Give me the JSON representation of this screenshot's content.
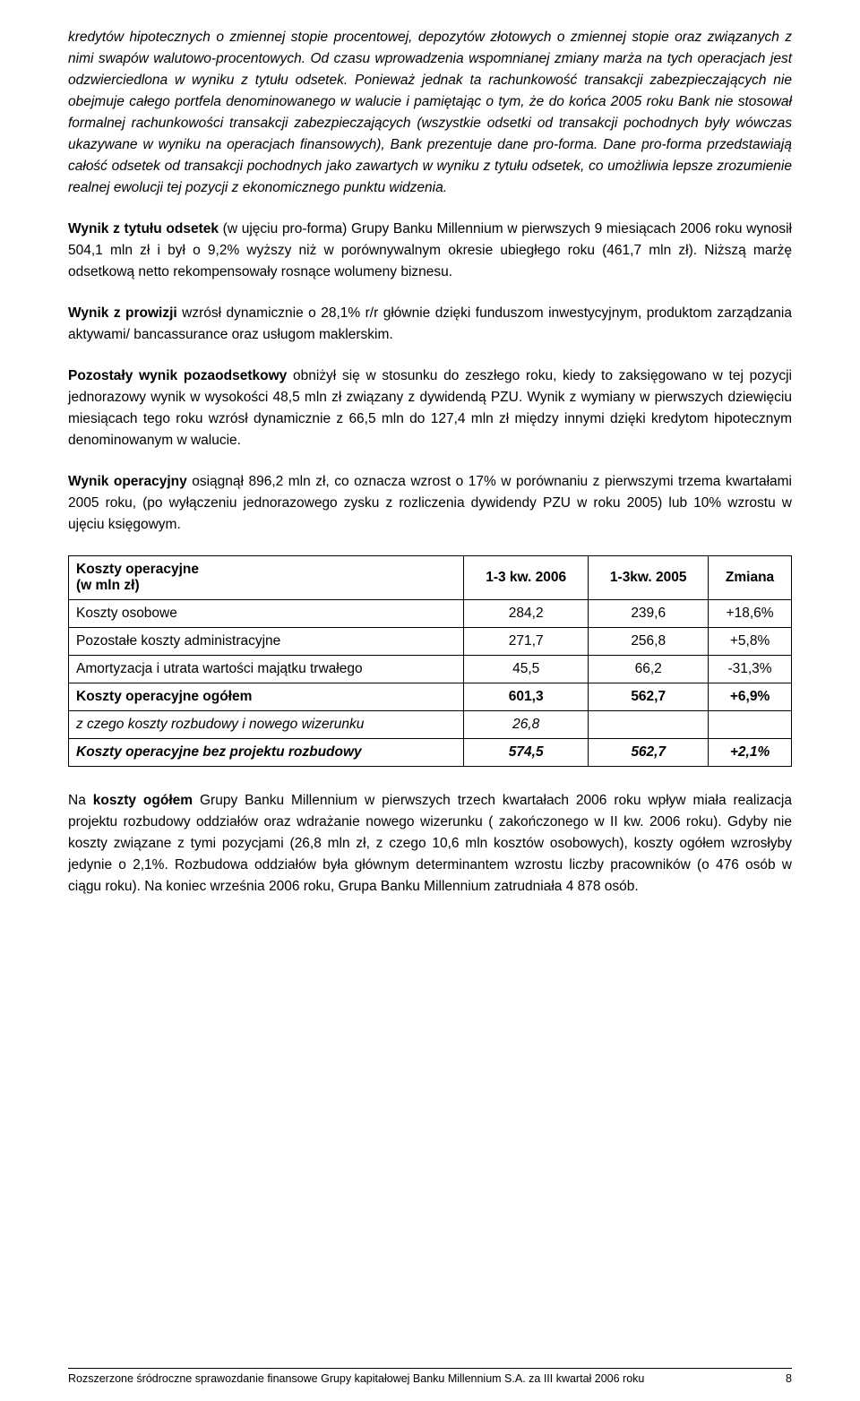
{
  "paragraphs": {
    "p1_full": "kredytów hipotecznych o zmiennej stopie procentowej, depozytów złotowych o zmiennej stopie oraz związanych z nimi swapów walutowo-procentowych. Od czasu wprowadzenia wspomnianej zmiany marża na tych operacjach jest odzwierciedlona w wyniku z tytułu odsetek. Ponieważ jednak ta rachunkowość transakcji zabezpieczających nie obejmuje całego portfela denominowanego w walucie i pamiętając o tym, że do końca 2005 roku Bank nie stosował formalnej rachunkowości transakcji zabezpieczających (wszystkie odsetki od transakcji pochodnych były wówczas ukazywane w wyniku na operacjach finansowych), Bank prezentuje dane pro-forma. Dane pro-forma przedstawiają całość odsetek od transakcji pochodnych jako zawartych w wyniku z tytułu odsetek, co umożliwia lepsze zrozumienie realnej ewolucji tej pozycji z ekonomicznego punktu widzenia.",
    "p2_bold": "Wynik z tytułu odsetek",
    "p2_rest": " (w ujęciu pro-forma) Grupy Banku Millennium w pierwszych 9 miesiącach 2006 roku wynosił 504,1 mln zł i był o 9,2% wyższy niż w porównywalnym okresie ubiegłego roku (461,7 mln zł). Niższą marżę odsetkową netto rekompensowały rosnące wolumeny biznesu.",
    "p3_bold": "Wynik z prowizji",
    "p3_rest": " wzrósł dynamicznie o 28,1% r/r głównie dzięki funduszom inwestycyjnym, produktom zarządzania aktywami/ bancassurance oraz usługom maklerskim.",
    "p4_bold": "Pozostały wynik pozaodsetkowy",
    "p4_rest": " obniżył się w stosunku do zeszłego roku, kiedy to zaksięgowano w tej pozycji jednorazowy wynik w wysokości 48,5 mln zł związany z dywidendą PZU. Wynik z wymiany w pierwszych dziewięciu miesiącach tego roku wzrósł dynamicznie z 66,5 mln do 127,4 mln zł między innymi dzięki kredytom hipotecznym denominowanym w walucie.",
    "p5_bold": "Wynik operacyjny",
    "p5_rest": " osiągnął 896,2 mln zł, co oznacza wzrost o 17% w porównaniu z pierwszymi trzema kwartałami 2005 roku, (po wyłączeniu jednorazowego zysku z rozliczenia dywidendy PZU w roku 2005) lub 10% wzrostu w ujęciu księgowym.",
    "p6_pre": "Na ",
    "p6_bold": "koszty ogółem",
    "p6_rest": " Grupy Banku Millennium w pierwszych trzech kwartałach 2006 roku wpływ miała realizacja projektu rozbudowy oddziałów oraz wdrażanie nowego wizerunku ( zakończonego w II kw. 2006 roku). Gdyby nie koszty związane z tymi pozycjami (26,8 mln zł, z czego 10,6 mln kosztów osobowych), koszty ogółem wzrosłyby jedynie o 2,1%. Rozbudowa oddziałów była głównym determinantem wzrostu liczby pracowników (o 476 osób w ciągu roku). Na koniec września 2006 roku, Grupa Banku Millennium zatrudniała 4 878 osób."
  },
  "table": {
    "header": {
      "col0_l1": "Koszty operacyjne",
      "col0_l2": "(w  mln zł)",
      "col1": "1-3 kw. 2006",
      "col2": "1-3kw. 2005",
      "col3": "Zmiana"
    },
    "rows": [
      {
        "label": "Koszty osobowe",
        "c1": "284,2",
        "c2": "239,6",
        "c3": "+18,6%",
        "bold": false,
        "italic": false
      },
      {
        "label": "Pozostałe koszty administracyjne",
        "c1": "271,7",
        "c2": "256,8",
        "c3": "+5,8%",
        "bold": false,
        "italic": false
      },
      {
        "label": "Amortyzacja i utrata wartości majątku trwałego",
        "c1": "45,5",
        "c2": "66,2",
        "c3": "-31,3%",
        "bold": false,
        "italic": false
      },
      {
        "label": "Koszty operacyjne ogółem",
        "c1": "601,3",
        "c2": "562,7",
        "c3": "+6,9%",
        "bold": true,
        "italic": false
      },
      {
        "label": "z czego koszty rozbudowy i nowego wizerunku",
        "c1": "26,8",
        "c2": "",
        "c3": "",
        "bold": false,
        "italic": true
      },
      {
        "label": "Koszty operacyjne bez projektu rozbudowy",
        "c1": "574,5",
        "c2": "562,7",
        "c3": "+2,1%",
        "bold": true,
        "italic": true
      }
    ]
  },
  "footer": {
    "text": "Rozszerzone śródroczne sprawozdanie finansowe Grupy kapitałowej Banku Millennium S.A. za III kwartał 2006 roku",
    "page": "8"
  }
}
